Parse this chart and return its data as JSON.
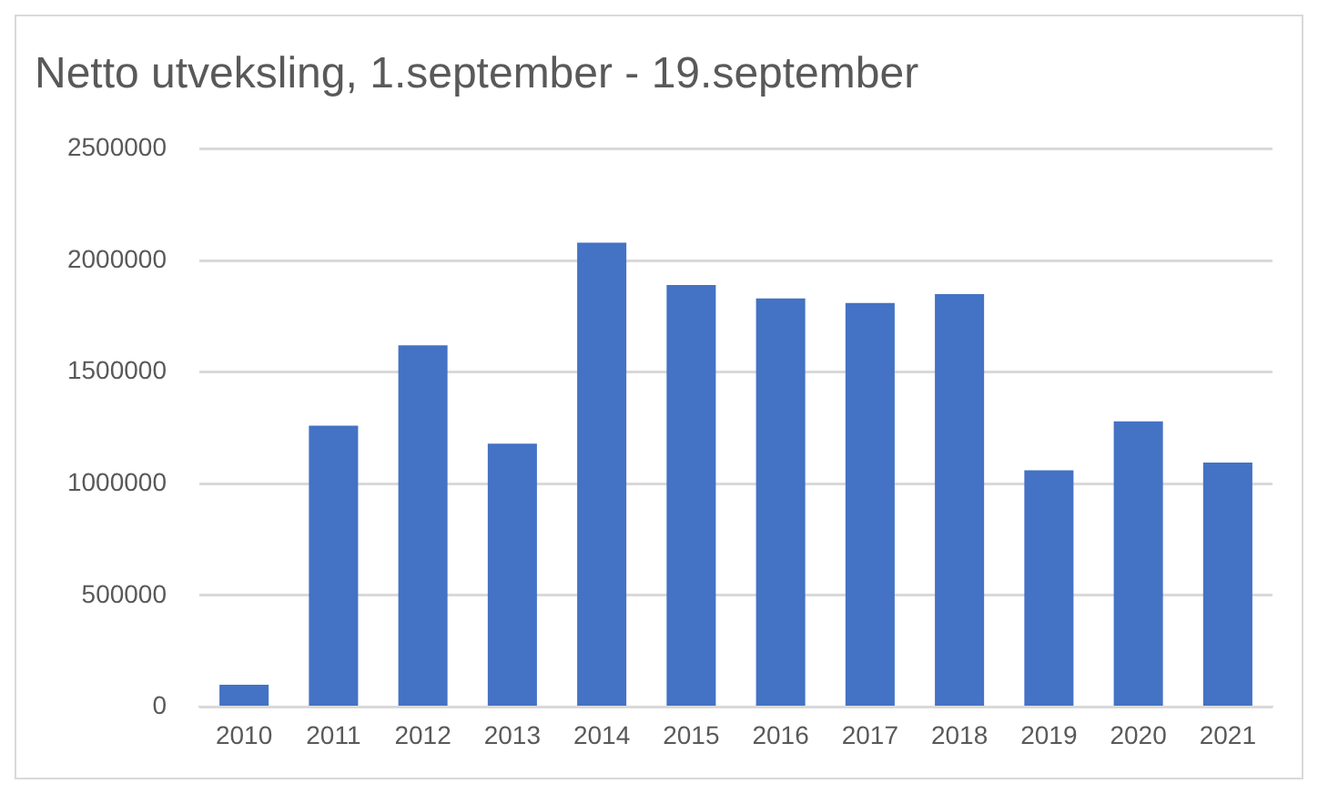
{
  "chart_data": {
    "type": "bar",
    "title": "Netto utveksling, 1.september - 19.september",
    "categories": [
      "2010",
      "2011",
      "2012",
      "2013",
      "2014",
      "2015",
      "2016",
      "2017",
      "2018",
      "2019",
      "2020",
      "2021"
    ],
    "values": [
      100000,
      1260000,
      1620000,
      1180000,
      2080000,
      1890000,
      1830000,
      1810000,
      1850000,
      1060000,
      1280000,
      1095000
    ],
    "color": "#4472c4",
    "ylim": [
      0,
      2500000
    ],
    "yticks": [
      0,
      500000,
      1000000,
      1500000,
      2000000,
      2500000
    ],
    "grid": "y",
    "legend": false
  }
}
